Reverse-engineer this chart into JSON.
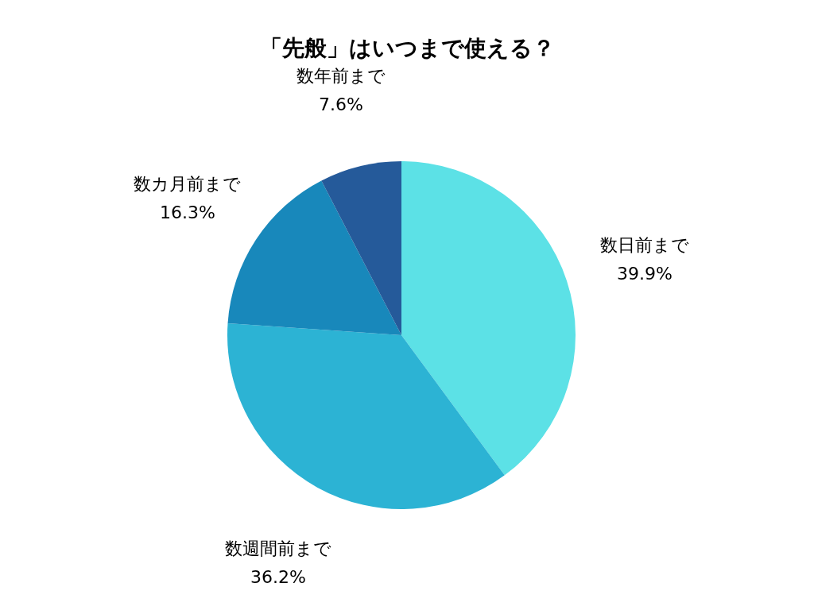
{
  "chart_data": {
    "type": "pie",
    "title": "「先般」はいつまで使える？",
    "categories": [
      "数日前まで",
      "数週間前まで",
      "数カ月前まで",
      "数年前まで"
    ],
    "values": [
      39.9,
      36.2,
      16.3,
      7.6
    ],
    "value_labels": [
      "39.9%",
      "36.2%",
      "16.3%",
      "7.6%"
    ],
    "colors": [
      "#5ce1e6",
      "#2cb3d4",
      "#1888bb",
      "#255a9a"
    ],
    "legend": false
  }
}
